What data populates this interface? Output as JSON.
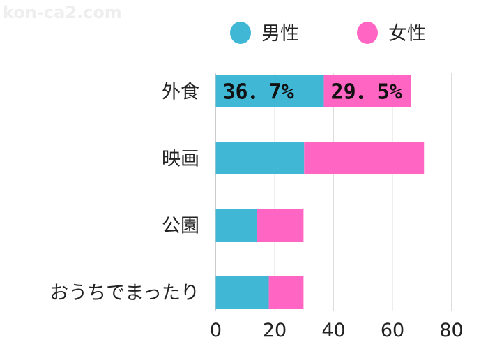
{
  "watermark": "kon-ca2.com",
  "chart_data": {
    "type": "bar",
    "orientation": "horizontal",
    "stacked": true,
    "categories": [
      "外食",
      "映画",
      "公園",
      "おうちでまったり"
    ],
    "series": [
      {
        "name": "男性",
        "color": "#41B7D6",
        "values": [
          36.7,
          30.0,
          13.9,
          18.0
        ]
      },
      {
        "name": "女性",
        "color": "#FF66C4",
        "values": [
          29.5,
          40.7,
          15.9,
          11.8
        ]
      }
    ],
    "data_labels": [
      {
        "category": "外食",
        "series": "男性",
        "text": "36．7%"
      },
      {
        "category": "外食",
        "series": "女性",
        "text": "29．5%"
      }
    ],
    "xlim": [
      0,
      80
    ],
    "xticks": [
      "0",
      "20",
      "40",
      "60",
      "80"
    ],
    "grid": true,
    "legend": "top-right"
  }
}
